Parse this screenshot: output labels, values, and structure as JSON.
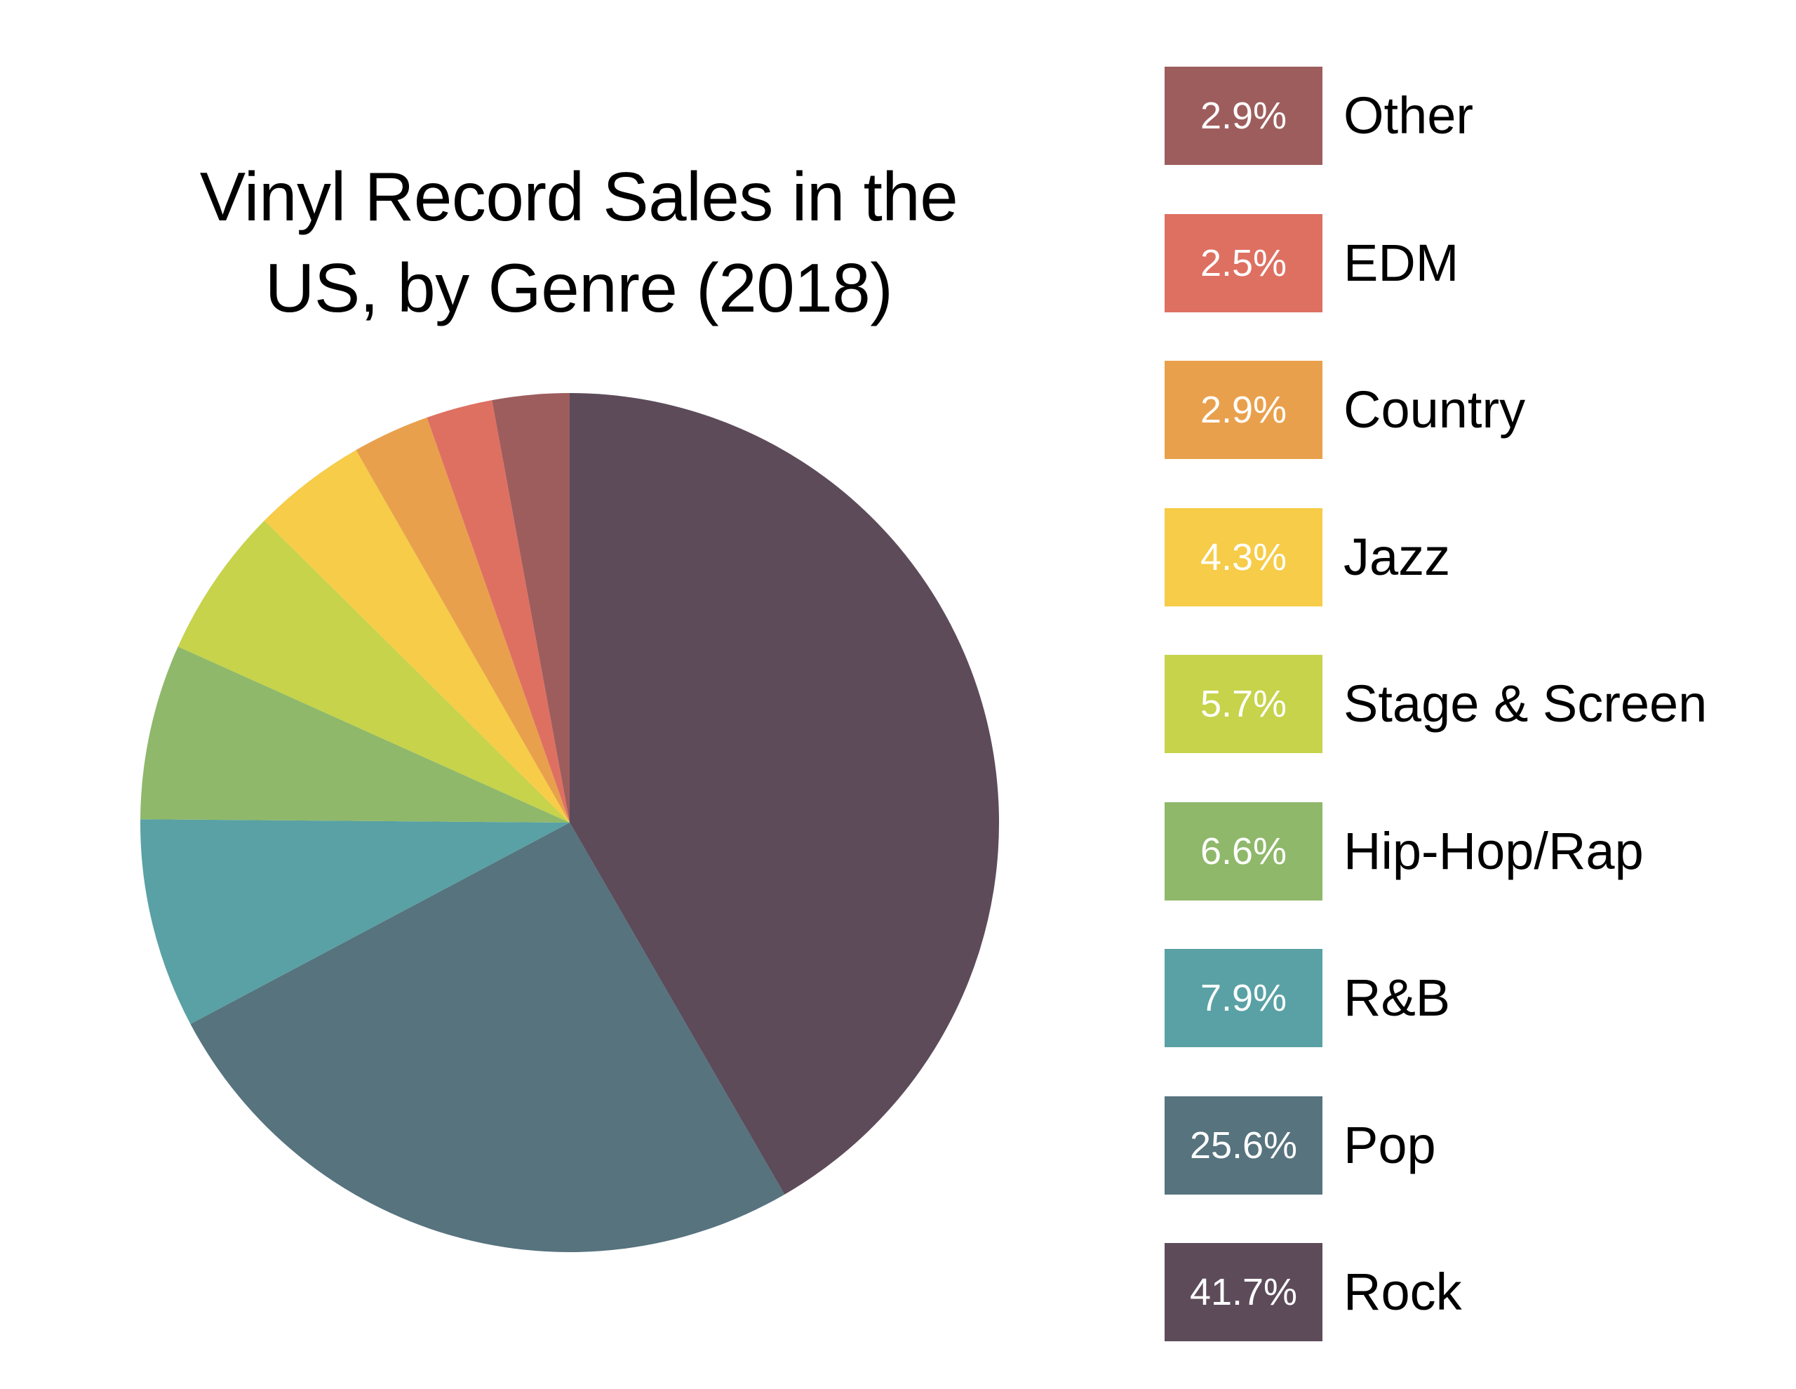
{
  "chart_data": {
    "type": "pie",
    "title_lines": [
      "Vinyl Record Sales in the",
      "US, by Genre (2018)"
    ],
    "unit": "%",
    "slices": [
      {
        "label": "Rock",
        "value": 41.7,
        "display": "41.7%",
        "color": "#5d4b5a"
      },
      {
        "label": "Pop",
        "value": 25.6,
        "display": "25.6%",
        "color": "#56737e"
      },
      {
        "label": "R&B",
        "value": 7.9,
        "display": "7.9%",
        "color": "#59a1a4"
      },
      {
        "label": "Hip-Hop/Rap",
        "value": 6.6,
        "display": "6.6%",
        "color": "#8fb86a"
      },
      {
        "label": "Stage & Screen",
        "value": 5.7,
        "display": "5.7%",
        "color": "#c6d34b"
      },
      {
        "label": "Jazz",
        "value": 4.3,
        "display": "4.3%",
        "color": "#f6cc48"
      },
      {
        "label": "Country",
        "value": 2.9,
        "display": "2.9%",
        "color": "#e9a04c"
      },
      {
        "label": "EDM",
        "value": 2.5,
        "display": "2.5%",
        "color": "#de7062"
      },
      {
        "label": "Other",
        "value": 2.9,
        "display": "2.9%",
        "color": "#9e5d5d"
      }
    ],
    "start_angle_deg": 0,
    "direction": "clockwise",
    "legend_position": "right",
    "legend_order": [
      "Other",
      "EDM",
      "Country",
      "Jazz",
      "Stage & Screen",
      "Hip-Hop/Rap",
      "R&B",
      "Pop",
      "Rock"
    ]
  }
}
